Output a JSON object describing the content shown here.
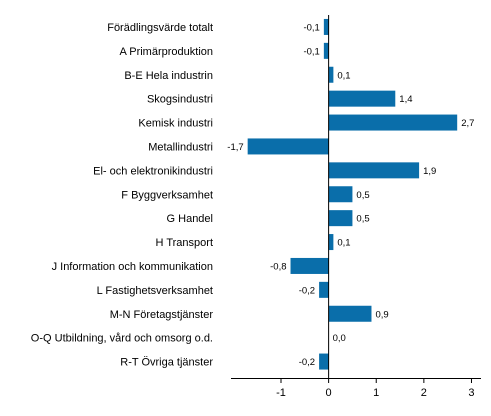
{
  "chart_data": {
    "type": "bar",
    "orientation": "horizontal",
    "categories": [
      "Förädlingsvärde totalt",
      "A Primärproduktion",
      "B-E Hela industrin",
      "Skogsindustri",
      "Kemisk industri",
      "Metallindustri",
      "El- och elektronikindustri",
      "F Byggverksamhet",
      "G Handel",
      "H Transport",
      "J Information och kommunikation",
      "L Fastighetsverksamhet",
      "M-N Företagstjänster",
      "O-Q Utbildning, vård och omsorg o.d.",
      "R-T Övriga tjänster"
    ],
    "values": [
      -0.1,
      -0.1,
      0.1,
      1.4,
      2.7,
      -1.7,
      1.9,
      0.5,
      0.5,
      0.1,
      -0.8,
      -0.2,
      0.9,
      0.0,
      -0.2
    ],
    "value_labels": [
      "-0,1",
      "-0,1",
      "0,1",
      "1,4",
      "2,7",
      "-1,7",
      "1,9",
      "0,5",
      "0,5",
      "0,1",
      "-0,8",
      "-0,2",
      "0,9",
      "0,0",
      "-0,2"
    ],
    "xticks": [
      -1,
      0,
      1,
      2,
      3
    ],
    "xtick_labels": [
      "-1",
      "0",
      "1",
      "2",
      "3"
    ],
    "xlim": [
      -2.05,
      3.2
    ],
    "bar_color": "#0a6eaa",
    "grid": false,
    "title": "",
    "xlabel": "",
    "ylabel": ""
  }
}
